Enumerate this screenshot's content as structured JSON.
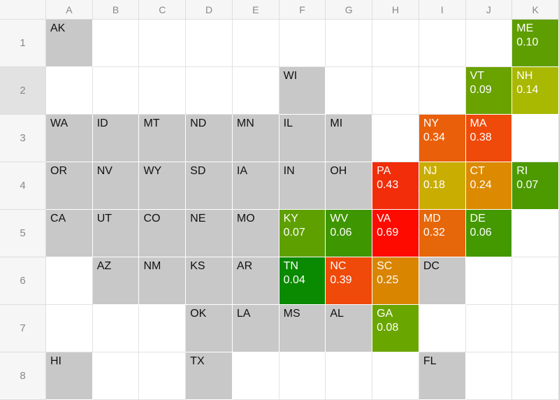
{
  "columns": [
    "A",
    "B",
    "C",
    "D",
    "E",
    "F",
    "G",
    "H",
    "I",
    "J",
    "K"
  ],
  "rows": [
    "1",
    "2",
    "3",
    "4",
    "5",
    "6",
    "7",
    "8"
  ],
  "selected_row": "2",
  "cells": [
    {
      "r": 1,
      "c": "A",
      "abbr": "AK",
      "fill": "#c8c8c8"
    },
    {
      "r": 1,
      "c": "K",
      "abbr": "ME",
      "value": "0.10",
      "fill": "#5e9e00"
    },
    {
      "r": 2,
      "c": "F",
      "abbr": "WI",
      "fill": "#c8c8c8"
    },
    {
      "r": 2,
      "c": "J",
      "abbr": "VT",
      "value": "0.09",
      "fill": "#6aa200"
    },
    {
      "r": 2,
      "c": "K",
      "abbr": "NH",
      "value": "0.14",
      "fill": "#a9b800"
    },
    {
      "r": 3,
      "c": "A",
      "abbr": "WA",
      "fill": "#c8c8c8"
    },
    {
      "r": 3,
      "c": "B",
      "abbr": "ID",
      "fill": "#c8c8c8"
    },
    {
      "r": 3,
      "c": "C",
      "abbr": "MT",
      "fill": "#c8c8c8"
    },
    {
      "r": 3,
      "c": "D",
      "abbr": "ND",
      "fill": "#c8c8c8"
    },
    {
      "r": 3,
      "c": "E",
      "abbr": "MN",
      "fill": "#c8c8c8"
    },
    {
      "r": 3,
      "c": "F",
      "abbr": "IL",
      "fill": "#c8c8c8"
    },
    {
      "r": 3,
      "c": "G",
      "abbr": "MI",
      "fill": "#c8c8c8"
    },
    {
      "r": 3,
      "c": "I",
      "abbr": "NY",
      "value": "0.34",
      "fill": "#ea5f0a"
    },
    {
      "r": 3,
      "c": "J",
      "abbr": "MA",
      "value": "0.38",
      "fill": "#ef4a0a"
    },
    {
      "r": 4,
      "c": "A",
      "abbr": "OR",
      "fill": "#c8c8c8"
    },
    {
      "r": 4,
      "c": "B",
      "abbr": "NV",
      "fill": "#c8c8c8"
    },
    {
      "r": 4,
      "c": "C",
      "abbr": "WY",
      "fill": "#c8c8c8"
    },
    {
      "r": 4,
      "c": "D",
      "abbr": "SD",
      "fill": "#c8c8c8"
    },
    {
      "r": 4,
      "c": "E",
      "abbr": "IA",
      "fill": "#c8c8c8"
    },
    {
      "r": 4,
      "c": "F",
      "abbr": "IN",
      "fill": "#c8c8c8"
    },
    {
      "r": 4,
      "c": "G",
      "abbr": "OH",
      "fill": "#c8c8c8"
    },
    {
      "r": 4,
      "c": "H",
      "abbr": "PA",
      "value": "0.43",
      "fill": "#f12d0a"
    },
    {
      "r": 4,
      "c": "I",
      "abbr": "NJ",
      "value": "0.18",
      "fill": "#c9ad00"
    },
    {
      "r": 4,
      "c": "J",
      "abbr": "CT",
      "value": "0.24",
      "fill": "#dc8a00"
    },
    {
      "r": 4,
      "c": "K",
      "abbr": "RI",
      "value": "0.07",
      "fill": "#4d9a00"
    },
    {
      "r": 5,
      "c": "A",
      "abbr": "CA",
      "fill": "#c8c8c8"
    },
    {
      "r": 5,
      "c": "B",
      "abbr": "UT",
      "fill": "#c8c8c8"
    },
    {
      "r": 5,
      "c": "C",
      "abbr": "CO",
      "fill": "#c8c8c8"
    },
    {
      "r": 5,
      "c": "D",
      "abbr": "NE",
      "fill": "#c8c8c8"
    },
    {
      "r": 5,
      "c": "E",
      "abbr": "MO",
      "fill": "#c8c8c8"
    },
    {
      "r": 5,
      "c": "F",
      "abbr": "KY",
      "value": "0.07",
      "fill": "#5ea000"
    },
    {
      "r": 5,
      "c": "G",
      "abbr": "WV",
      "value": "0.06",
      "fill": "#3e9600"
    },
    {
      "r": 5,
      "c": "H",
      "abbr": "VA",
      "value": "0.69",
      "fill": "#ff0a00"
    },
    {
      "r": 5,
      "c": "I",
      "abbr": "MD",
      "value": "0.32",
      "fill": "#e6660a"
    },
    {
      "r": 5,
      "c": "J",
      "abbr": "DE",
      "value": "0.06",
      "fill": "#449800"
    },
    {
      "r": 6,
      "c": "B",
      "abbr": "AZ",
      "fill": "#c8c8c8"
    },
    {
      "r": 6,
      "c": "C",
      "abbr": "NM",
      "fill": "#c8c8c8"
    },
    {
      "r": 6,
      "c": "D",
      "abbr": "KS",
      "fill": "#c8c8c8"
    },
    {
      "r": 6,
      "c": "E",
      "abbr": "AR",
      "fill": "#c8c8c8"
    },
    {
      "r": 6,
      "c": "F",
      "abbr": "TN",
      "value": "0.04",
      "fill": "#0a8a00"
    },
    {
      "r": 6,
      "c": "G",
      "abbr": "NC",
      "value": "0.39",
      "fill": "#ef4a0a"
    },
    {
      "r": 6,
      "c": "H",
      "abbr": "SC",
      "value": "0.25",
      "fill": "#d98500"
    },
    {
      "r": 6,
      "c": "I",
      "abbr": "DC",
      "fill": "#c8c8c8"
    },
    {
      "r": 7,
      "c": "D",
      "abbr": "OK",
      "fill": "#c8c8c8"
    },
    {
      "r": 7,
      "c": "E",
      "abbr": "LA",
      "fill": "#c8c8c8"
    },
    {
      "r": 7,
      "c": "F",
      "abbr": "MS",
      "fill": "#c8c8c8"
    },
    {
      "r": 7,
      "c": "G",
      "abbr": "AL",
      "fill": "#c8c8c8"
    },
    {
      "r": 7,
      "c": "H",
      "abbr": "GA",
      "value": "0.08",
      "fill": "#6aa600"
    },
    {
      "r": 8,
      "c": "A",
      "abbr": "HI",
      "fill": "#c8c8c8"
    },
    {
      "r": 8,
      "c": "D",
      "abbr": "TX",
      "fill": "#c8c8c8"
    },
    {
      "r": 8,
      "c": "I",
      "abbr": "FL",
      "fill": "#c8c8c8"
    }
  ]
}
